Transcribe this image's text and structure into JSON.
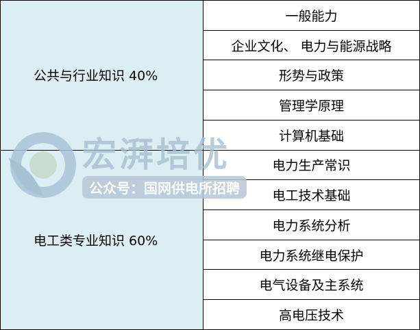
{
  "categories": [
    {
      "label": "公共与行业知识 40%",
      "subjects": [
        "一般能力",
        "企业文化、 电力与能源战略",
        "形势与政策",
        "管理学原理",
        "计算机基础"
      ]
    },
    {
      "label": "电工类专业知识 60%",
      "subjects": [
        "电力生产常识",
        "电工技术基础",
        "电力系统分析",
        "电力系统继电保护",
        "电气设备及主系统",
        "高电压技术"
      ]
    }
  ],
  "watermark": {
    "title": "宏湃培优",
    "subtitle": "公众号：国网供电所招聘"
  }
}
